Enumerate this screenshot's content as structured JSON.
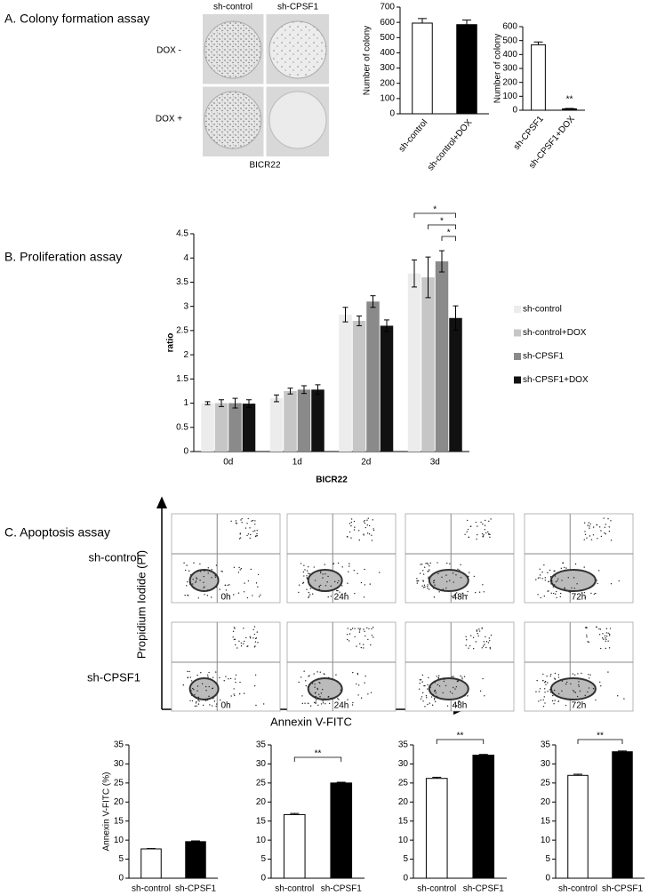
{
  "panel_a": {
    "title": "A. Colony formation assay",
    "columns": [
      "sh-control",
      "sh-CPSF1"
    ],
    "rows": [
      "DOX -",
      "DOX +"
    ],
    "caption": "BICR22"
  },
  "panel_b": {
    "title": "B. Proliferation assay"
  },
  "panel_c": {
    "title": "C. Apoptosis assay",
    "rows": [
      "sh-control",
      "sh-CPSF1"
    ],
    "timepoints": [
      "0h",
      "24h",
      "48h",
      "72h"
    ],
    "y_axis": "Propidium Iodide (PI)",
    "x_axis": "Annexin V-FITC"
  },
  "chart_data": [
    {
      "type": "bar",
      "y_label": "Number of colony",
      "categories": [
        "sh-control",
        "sh-control+DOX"
      ],
      "values": [
        595,
        585
      ],
      "errors": [
        30,
        30
      ],
      "colors": [
        "#ffffff",
        "#000000"
      ],
      "ylim": [
        0,
        700
      ],
      "yticks": [
        0,
        100,
        200,
        300,
        400,
        500,
        600,
        700
      ]
    },
    {
      "type": "bar",
      "y_label": "Number of colony",
      "categories": [
        "sh-CPSF1",
        "sh-CPSF1+DOX"
      ],
      "values": [
        470,
        10
      ],
      "errors": [
        20,
        3
      ],
      "colors": [
        "#ffffff",
        "#000000"
      ],
      "ylim": [
        0,
        600
      ],
      "yticks": [
        0,
        100,
        200,
        300,
        400,
        500,
        600
      ],
      "annotations": [
        "**"
      ]
    },
    {
      "type": "grouped-bar",
      "y_label": "ratio",
      "x_label": "BICR22",
      "categories": [
        "0d",
        "1d",
        "2d",
        "3d"
      ],
      "series": [
        {
          "name": "sh-control",
          "color": "#ececec",
          "values": [
            1.0,
            1.1,
            2.83,
            3.68
          ],
          "errors": [
            0.03,
            0.07,
            0.15,
            0.28
          ]
        },
        {
          "name": "sh-control+DOX",
          "color": "#c6c6c6",
          "values": [
            1.0,
            1.25,
            2.7,
            3.6
          ],
          "errors": [
            0.07,
            0.06,
            0.1,
            0.42
          ]
        },
        {
          "name": "sh-CPSF1",
          "color": "#8a8a8a",
          "values": [
            1.0,
            1.28,
            3.1,
            3.93
          ],
          "errors": [
            0.1,
            0.08,
            0.12,
            0.22
          ]
        },
        {
          "name": "sh-CPSF1+DOX",
          "color": "#111111",
          "values": [
            0.99,
            1.28,
            2.6,
            2.76
          ],
          "errors": [
            0.08,
            0.1,
            0.12,
            0.25
          ]
        }
      ],
      "ylim": [
        0,
        4.5
      ],
      "yticks": [
        0,
        0.5,
        1,
        1.5,
        2,
        2.5,
        3,
        3.5,
        4,
        4.5
      ],
      "annotations": [
        "*",
        "*",
        "*"
      ]
    },
    {
      "type": "bar",
      "y_label": "Annexin V-FITC (%)",
      "categories": [
        "sh-control",
        "sh-CPSF1"
      ],
      "values": [
        7.7,
        9.6
      ],
      "errors": [
        0.1,
        0.2
      ],
      "colors": [
        "#ffffff",
        "#000000"
      ],
      "ylim": [
        0,
        35
      ],
      "yticks": [
        0,
        5,
        10,
        15,
        20,
        25,
        30,
        35
      ]
    },
    {
      "type": "bar",
      "categories": [
        "sh-control",
        "sh-CPSF1"
      ],
      "values": [
        16.7,
        25
      ],
      "errors": [
        0.3,
        0.2
      ],
      "colors": [
        "#ffffff",
        "#000000"
      ],
      "ylim": [
        0,
        35
      ],
      "yticks": [
        0,
        5,
        10,
        15,
        20,
        25,
        30,
        35
      ],
      "annotations": [
        "**"
      ]
    },
    {
      "type": "bar",
      "categories": [
        "sh-control",
        "sh-CPSF1"
      ],
      "values": [
        26.2,
        32.3
      ],
      "errors": [
        0.3,
        0.2
      ],
      "colors": [
        "#ffffff",
        "#000000"
      ],
      "ylim": [
        0,
        35
      ],
      "yticks": [
        0,
        5,
        10,
        15,
        20,
        25,
        30,
        35
      ],
      "annotations": [
        "**"
      ]
    },
    {
      "type": "bar",
      "categories": [
        "sh-control",
        "sh-CPSF1"
      ],
      "values": [
        27,
        33.2
      ],
      "errors": [
        0.3,
        0.2
      ],
      "colors": [
        "#ffffff",
        "#000000"
      ],
      "ylim": [
        0,
        35
      ],
      "yticks": [
        0,
        5,
        10,
        15,
        20,
        25,
        30,
        35
      ],
      "annotations": [
        "**"
      ]
    }
  ]
}
